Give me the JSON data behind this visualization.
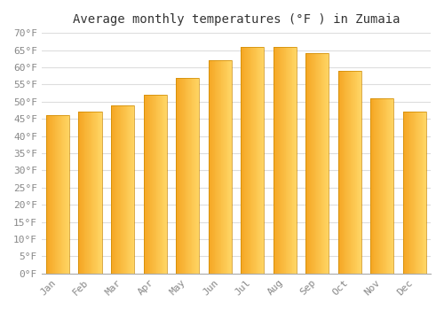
{
  "title": "Average monthly temperatures (°F ) in Zumaia",
  "months": [
    "Jan",
    "Feb",
    "Mar",
    "Apr",
    "May",
    "Jun",
    "Jul",
    "Aug",
    "Sep",
    "Oct",
    "Nov",
    "Dec"
  ],
  "values": [
    46,
    47,
    49,
    52,
    57,
    62,
    66,
    66,
    64,
    59,
    51,
    47
  ],
  "bar_color_left": "#F5A623",
  "bar_color_right": "#FFD966",
  "bar_edge_color": "#CC8800",
  "ylim": [
    0,
    70
  ],
  "yticks": [
    0,
    5,
    10,
    15,
    20,
    25,
    30,
    35,
    40,
    45,
    50,
    55,
    60,
    65,
    70
  ],
  "ytick_labels": [
    "0°F",
    "5°F",
    "10°F",
    "15°F",
    "20°F",
    "25°F",
    "30°F",
    "35°F",
    "40°F",
    "45°F",
    "50°F",
    "55°F",
    "60°F",
    "65°F",
    "70°F"
  ],
  "background_color": "#ffffff",
  "grid_color": "#dddddd",
  "title_fontsize": 10,
  "tick_fontsize": 8,
  "font_family": "monospace"
}
